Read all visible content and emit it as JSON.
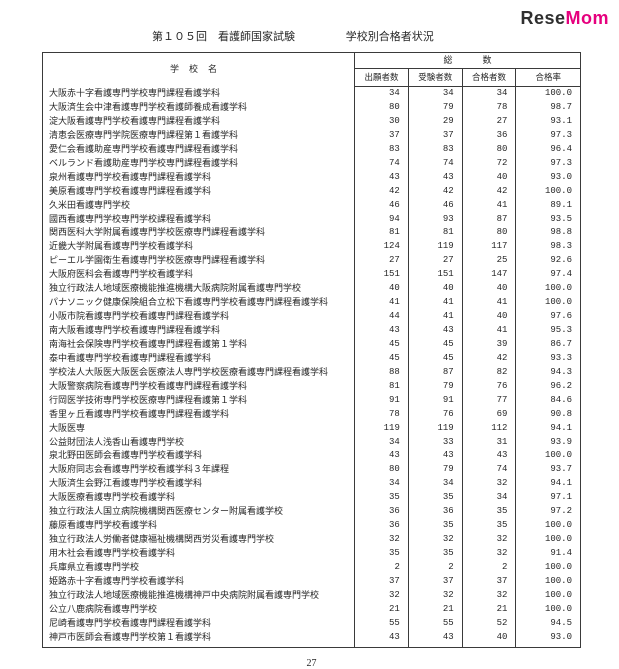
{
  "watermark": {
    "left": "Rese",
    "right": "Mom"
  },
  "title": {
    "left": "第１０５回　看護師国家試験",
    "right": "学校別合格者状況"
  },
  "header": {
    "school": "学校名",
    "group_total": "総数",
    "c1": "出願者数",
    "c2": "受験者数",
    "c3": "合格者数",
    "c4": "合格率"
  },
  "page_number": "27",
  "rows": [
    {
      "n": "大阪赤十字看護専門学校専門課程看護学科",
      "a": "34",
      "b": "34",
      "c": "34",
      "d": "100.0"
    },
    {
      "n": "大阪済生会中津看護専門学校看護師養成看護学科",
      "a": "80",
      "b": "79",
      "c": "78",
      "d": "98.7"
    },
    {
      "n": "淀大阪看護専門学校看護専門課程看護学科",
      "a": "30",
      "b": "29",
      "c": "27",
      "d": "93.1"
    },
    {
      "n": "清恵会医療専門学院医療専門課程第１看護学科",
      "a": "37",
      "b": "37",
      "c": "36",
      "d": "97.3"
    },
    {
      "n": "愛仁会看護助産専門学校看護専門課程看護学科",
      "a": "83",
      "b": "83",
      "c": "80",
      "d": "96.4"
    },
    {
      "n": "ベルランド看護助産専門学校専門課程看護学科",
      "a": "74",
      "b": "74",
      "c": "72",
      "d": "97.3"
    },
    {
      "n": "泉州看護専門学校看護専門課程看護学科",
      "a": "43",
      "b": "43",
      "c": "40",
      "d": "93.0"
    },
    {
      "n": "美原看護専門学校看護専門課程看護学科",
      "a": "42",
      "b": "42",
      "c": "42",
      "d": "100.0"
    },
    {
      "n": "久米田看護専門学校",
      "a": "46",
      "b": "46",
      "c": "41",
      "d": "89.1"
    },
    {
      "n": "國西看護専門学校専門学校課程看護学科",
      "a": "94",
      "b": "93",
      "c": "87",
      "d": "93.5"
    },
    {
      "n": "関西医科大学附属看護専門学校医療専門課程看護学科",
      "a": "81",
      "b": "81",
      "c": "80",
      "d": "98.8"
    },
    {
      "n": "近畿大学附属看護専門学校看護学科",
      "a": "124",
      "b": "119",
      "c": "117",
      "d": "98.3"
    },
    {
      "n": "ピーエル学園衛生看護専門学校医療専門課程看護学科",
      "a": "27",
      "b": "27",
      "c": "25",
      "d": "92.6"
    },
    {
      "n": "大阪府医科会看護専門学校看護学科",
      "a": "151",
      "b": "151",
      "c": "147",
      "d": "97.4"
    },
    {
      "n": "独立行政法人地域医療機能推進機構大阪病院附属看護専門学校",
      "a": "40",
      "b": "40",
      "c": "40",
      "d": "100.0"
    },
    {
      "n": "パナソニック健康保険組合立松下看護専門学校看護専門課程看護学科",
      "a": "41",
      "b": "41",
      "c": "41",
      "d": "100.0"
    },
    {
      "n": "小阪市院看護専門学校看護専門課程看護学科",
      "a": "44",
      "b": "41",
      "c": "40",
      "d": "97.6"
    },
    {
      "n": "南大阪看護専門学校看護専門課程看護学科",
      "a": "43",
      "b": "43",
      "c": "41",
      "d": "95.3"
    },
    {
      "n": "南海社会保険専門学校看護専門課程看護第１学科",
      "a": "45",
      "b": "45",
      "c": "39",
      "d": "86.7"
    },
    {
      "n": "泰中看護専門学校看護専門課程看護学科",
      "a": "45",
      "b": "45",
      "c": "42",
      "d": "93.3"
    },
    {
      "n": "学校法人大阪医大阪医会医療法人専門学校医療看護専門課程看護学科",
      "a": "88",
      "b": "87",
      "c": "82",
      "d": "94.3"
    },
    {
      "n": "大阪警察病院看護専門学校看護専門課程看護学科",
      "a": "81",
      "b": "79",
      "c": "76",
      "d": "96.2"
    },
    {
      "n": "行岡医学技術専門学校医療専門課程看護第１学科",
      "a": "91",
      "b": "91",
      "c": "77",
      "d": "84.6"
    },
    {
      "n": "香里ヶ丘看護専門学校看護専門課程看護学科",
      "a": "78",
      "b": "76",
      "c": "69",
      "d": "90.8"
    },
    {
      "n": "大阪医専",
      "a": "119",
      "b": "119",
      "c": "112",
      "d": "94.1"
    },
    {
      "n": "公益財団法人浅香山看護専門学校",
      "a": "34",
      "b": "33",
      "c": "31",
      "d": "93.9"
    },
    {
      "n": "泉北野田医師会看護専門学校看護学科",
      "a": "43",
      "b": "43",
      "c": "43",
      "d": "100.0"
    },
    {
      "n": "大阪府同志会看護専門学校看護学科３年課程",
      "a": "80",
      "b": "79",
      "c": "74",
      "d": "93.7"
    },
    {
      "n": "大阪済生会野江看護専門学校看護学科",
      "a": "34",
      "b": "34",
      "c": "32",
      "d": "94.1"
    },
    {
      "n": "大阪医療看護専門学校看護学科",
      "a": "35",
      "b": "35",
      "c": "34",
      "d": "97.1"
    },
    {
      "n": "独立行政法人国立病院機構関西医療センター附属看護学校",
      "a": "36",
      "b": "36",
      "c": "35",
      "d": "97.2"
    },
    {
      "n": "藤原看護専門学校看護学科",
      "a": "36",
      "b": "35",
      "c": "35",
      "d": "100.0"
    },
    {
      "n": "独立行政法人労働者健康福祉機構関西労災看護専門学校",
      "a": "32",
      "b": "32",
      "c": "32",
      "d": "100.0"
    },
    {
      "n": "用木社会看護専門学校看護学科",
      "a": "35",
      "b": "35",
      "c": "32",
      "d": "91.4"
    },
    {
      "n": "兵庫県立看護専門学校",
      "a": "2",
      "b": "2",
      "c": "2",
      "d": "100.0"
    },
    {
      "n": "姫路赤十字看護専門学校看護学科",
      "a": "37",
      "b": "37",
      "c": "37",
      "d": "100.0"
    },
    {
      "n": "独立行政法人地域医療機能推進機構神戸中央病院附属看護専門学校",
      "a": "32",
      "b": "32",
      "c": "32",
      "d": "100.0"
    },
    {
      "n": "公立八鹿病院看護専門学校",
      "a": "21",
      "b": "21",
      "c": "21",
      "d": "100.0"
    },
    {
      "n": "尼崎看護専門学校看護専門課程看護学科",
      "a": "55",
      "b": "55",
      "c": "52",
      "d": "94.5"
    },
    {
      "n": "神戸市医師会看護専門学校第１看護学科",
      "a": "43",
      "b": "43",
      "c": "40",
      "d": "93.0"
    }
  ]
}
